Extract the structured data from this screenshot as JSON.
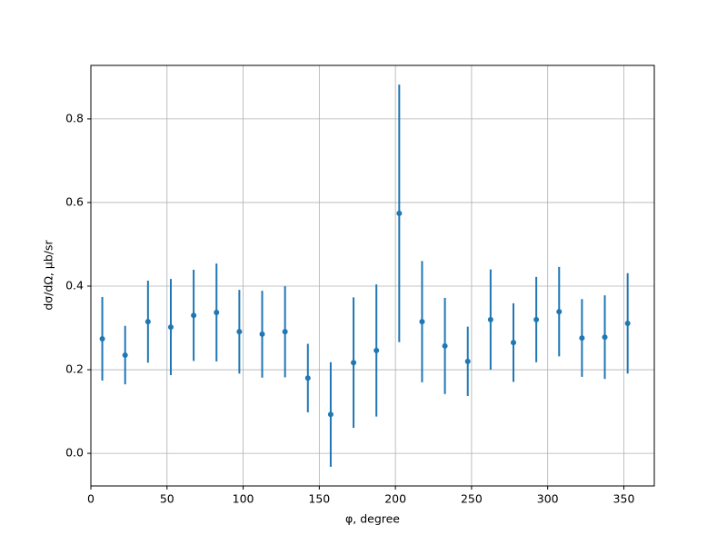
{
  "chart_data": {
    "type": "errorbar",
    "xlabel": "φ, degree",
    "ylabel": "dσ/dΩ, μb/sr",
    "x": [
      7.5,
      22.5,
      37.5,
      52.5,
      67.5,
      82.5,
      97.5,
      112.5,
      127.5,
      142.5,
      157.5,
      172.5,
      187.5,
      202.5,
      217.5,
      232.5,
      247.5,
      262.5,
      277.5,
      292.5,
      307.5,
      322.5,
      337.5,
      352.5
    ],
    "values": [
      0.274,
      0.235,
      0.315,
      0.302,
      0.33,
      0.337,
      0.291,
      0.285,
      0.291,
      0.18,
      0.093,
      0.217,
      0.246,
      0.574,
      0.315,
      0.257,
      0.22,
      0.32,
      0.265,
      0.32,
      0.339,
      0.276,
      0.278,
      0.311
    ],
    "errors": [
      0.1,
      0.07,
      0.098,
      0.115,
      0.109,
      0.117,
      0.1,
      0.104,
      0.109,
      0.082,
      0.125,
      0.156,
      0.158,
      0.308,
      0.145,
      0.115,
      0.083,
      0.12,
      0.094,
      0.102,
      0.107,
      0.093,
      0.1,
      0.12
    ],
    "color": "#1f77b4",
    "xlim": [
      0,
      370
    ],
    "xticks": [
      0,
      50,
      100,
      150,
      200,
      250,
      300,
      350
    ],
    "ylim": [
      -0.078,
      0.928
    ],
    "yticks": [
      {
        "value": 0,
        "label": "0.0"
      },
      0.2,
      0.4,
      0.6,
      0.8
    ],
    "grid": true
  }
}
